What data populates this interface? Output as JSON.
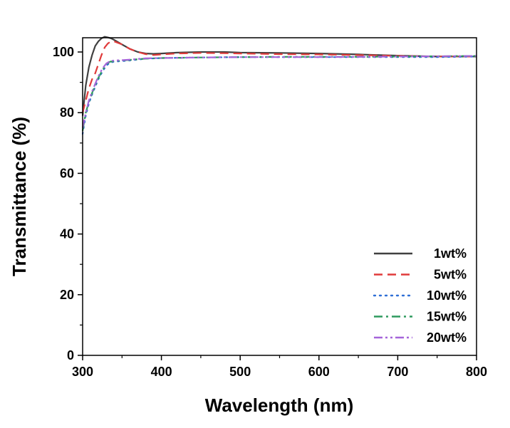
{
  "chart_data": {
    "type": "line",
    "title": "",
    "xlabel": "Wavelength (nm)",
    "ylabel": "Transmittance (%)",
    "xlim": [
      300,
      800
    ],
    "ylim": [
      0,
      105
    ],
    "xticks": [
      300,
      400,
      500,
      600,
      700,
      800
    ],
    "yticks": [
      0,
      20,
      40,
      60,
      80,
      100
    ],
    "xtick_labels": [
      "300",
      "400",
      "500",
      "600",
      "700",
      "800"
    ],
    "ytick_labels": [
      "0",
      "20",
      "40",
      "60",
      "80",
      "100"
    ],
    "grid": false,
    "legend_position": "bottom-right",
    "series": [
      {
        "name": "1wt%",
        "color": "#404040",
        "style": "solid",
        "x": [
          300,
          304,
          308,
          312,
          316,
          320,
          324,
          328,
          332,
          336,
          340,
          350,
          360,
          370,
          380,
          390,
          400,
          420,
          450,
          480,
          500,
          550,
          600,
          650,
          700,
          750,
          800
        ],
        "y": [
          79,
          89,
          95,
          99,
          102,
          103.5,
          104.5,
          105,
          104.8,
          104.5,
          104,
          102.5,
          101,
          100,
          99.5,
          99.4,
          99.5,
          99.8,
          100,
          100,
          99.8,
          99.7,
          99.5,
          99.2,
          98.8,
          98.5,
          98.5
        ]
      },
      {
        "name": "5wt%",
        "color": "#e03a3a",
        "style": "dashed",
        "x": [
          300,
          304,
          308,
          312,
          316,
          320,
          324,
          328,
          332,
          336,
          340,
          350,
          360,
          370,
          380,
          390,
          400,
          420,
          450,
          480,
          500,
          550,
          600,
          650,
          700,
          750,
          800
        ],
        "y": [
          80,
          84,
          88,
          91,
          93,
          96,
          99,
          101.5,
          102.8,
          103.5,
          103.5,
          102.5,
          101,
          100,
          99.3,
          99,
          99.2,
          99.5,
          99.7,
          99.6,
          99.5,
          99.3,
          99.2,
          99,
          98.7,
          98.5,
          98.5
        ]
      },
      {
        "name": "10wt%",
        "color": "#2f6fd6",
        "style": "dotted",
        "x": [
          300,
          304,
          308,
          312,
          316,
          320,
          325,
          330,
          335,
          340,
          350,
          360,
          370,
          380,
          400,
          450,
          500,
          550,
          600,
          650,
          700,
          750,
          800
        ],
        "y": [
          73,
          79,
          83,
          86,
          88.5,
          91,
          93.5,
          95.5,
          96.5,
          96.8,
          97,
          97.2,
          97.5,
          97.8,
          98,
          98.2,
          98.3,
          98.3,
          98.3,
          98.3,
          98.3,
          98.3,
          98.5
        ]
      },
      {
        "name": "15wt%",
        "color": "#2e9a5e",
        "style": "dashdot",
        "x": [
          300,
          304,
          308,
          312,
          316,
          320,
          325,
          330,
          335,
          340,
          350,
          360,
          370,
          380,
          400,
          450,
          500,
          550,
          600,
          650,
          700,
          750,
          800
        ],
        "y": [
          74,
          80,
          83.5,
          86.5,
          89,
          91.5,
          94,
          96,
          96.8,
          97,
          97.2,
          97.4,
          97.6,
          97.8,
          98,
          98.2,
          98.3,
          98.4,
          98.4,
          98.4,
          98.5,
          98.6,
          98.7
        ]
      },
      {
        "name": "20wt%",
        "color": "#a565d9",
        "style": "dashdotdot",
        "x": [
          300,
          304,
          308,
          312,
          316,
          320,
          325,
          330,
          335,
          340,
          350,
          360,
          370,
          380,
          400,
          450,
          500,
          550,
          600,
          650,
          700,
          750,
          800
        ],
        "y": [
          75,
          80,
          84,
          87,
          89.5,
          92,
          94.5,
          96.2,
          97,
          97.2,
          97.3,
          97.5,
          97.7,
          97.9,
          98,
          98.2,
          98.3,
          98.3,
          98.3,
          98.4,
          98.5,
          98.6,
          98.7
        ]
      }
    ]
  }
}
